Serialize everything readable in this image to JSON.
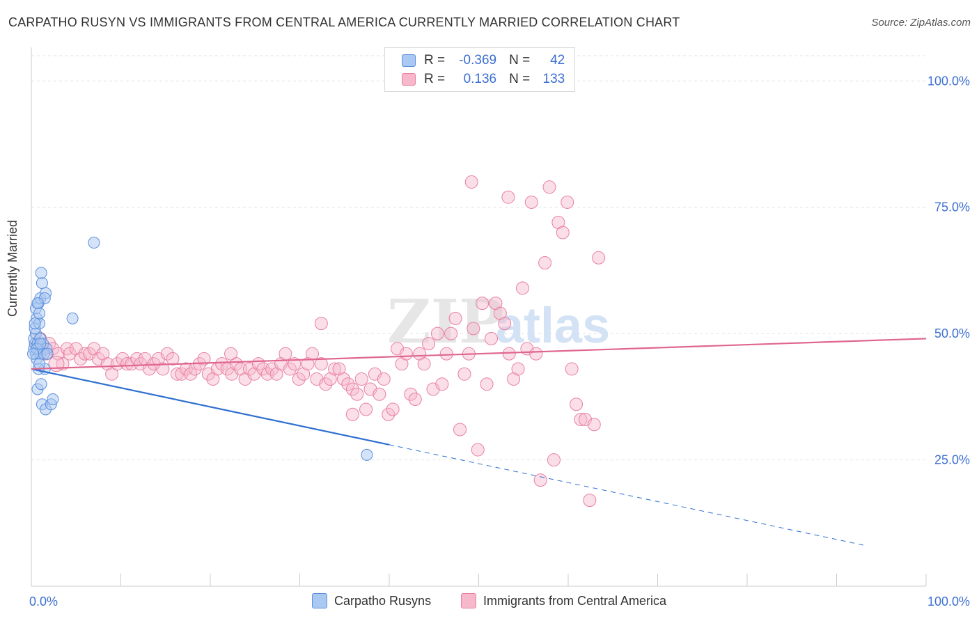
{
  "header": {
    "title": "CARPATHO RUSYN VS IMMIGRANTS FROM CENTRAL AMERICA CURRENTLY MARRIED CORRELATION CHART",
    "source": "Source: ZipAtlas.com"
  },
  "watermark": {
    "part1": "ZIP",
    "part2": "atlas"
  },
  "legend_top": {
    "rows": [
      {
        "r_label": "R =",
        "r_value": "-0.369",
        "n_label": "N =",
        "n_value": "42"
      },
      {
        "r_label": "R =",
        "r_value": "0.136",
        "n_label": "N =",
        "n_value": "133"
      }
    ]
  },
  "legend_bottom": {
    "s1": "Carpatho Rusyns",
    "s2": "Immigrants from Central America"
  },
  "colors": {
    "blue_fill": "#a9c8f2",
    "blue_stroke": "#5b8fdc",
    "blue_line": "#2e6fd0",
    "pink_fill": "#f7b8cc",
    "pink_stroke": "#e87fa0",
    "pink_line": "#e0668f",
    "tick_text": "#3d6fd1",
    "grid": "#e2e2e2"
  },
  "chart_data": {
    "type": "scatter",
    "title": "CARPATHO RUSYN VS IMMIGRANTS FROM CENTRAL AMERICA CURRENTLY MARRIED CORRELATION CHART",
    "xlabel": "",
    "ylabel": "Currently Married",
    "xlim": [
      0,
      100
    ],
    "ylim": [
      0,
      105
    ],
    "x_tick_labels": [
      "0.0%",
      "100.0%"
    ],
    "y_ticks": [
      {
        "value": 25,
        "label": "25.0%"
      },
      {
        "value": 50,
        "label": "50.0%"
      },
      {
        "value": 75,
        "label": "75.0%"
      },
      {
        "value": 100,
        "label": "100.0%"
      }
    ],
    "grid": true,
    "legend": "top-center",
    "series": [
      {
        "name": "Carpatho Rusyns",
        "r": -0.369,
        "n": 42,
        "trend": {
          "x0": 0,
          "y0": 43,
          "x1": 40,
          "y1": 28,
          "dash_to_x": 93
        },
        "points": [
          [
            0.3,
            47
          ],
          [
            0.5,
            46
          ],
          [
            0.4,
            48
          ],
          [
            0.6,
            45
          ],
          [
            0.8,
            47
          ],
          [
            1.0,
            46
          ],
          [
            0.3,
            49
          ],
          [
            0.5,
            50
          ],
          [
            0.7,
            48
          ],
          [
            0.4,
            51
          ],
          [
            0.6,
            53
          ],
          [
            0.9,
            52
          ],
          [
            0.5,
            55
          ],
          [
            0.8,
            56
          ],
          [
            1.0,
            57
          ],
          [
            1.2,
            60
          ],
          [
            1.1,
            62
          ],
          [
            1.6,
            58
          ],
          [
            1.5,
            57
          ],
          [
            0.7,
            56
          ],
          [
            0.9,
            54
          ],
          [
            0.4,
            52
          ],
          [
            1.0,
            49
          ],
          [
            1.3,
            48
          ],
          [
            1.7,
            47
          ],
          [
            1.4,
            46
          ],
          [
            1.5,
            43
          ],
          [
            0.8,
            43
          ],
          [
            0.9,
            44
          ],
          [
            0.7,
            39
          ],
          [
            1.1,
            40
          ],
          [
            1.2,
            36
          ],
          [
            1.6,
            35
          ],
          [
            2.2,
            36
          ],
          [
            2.4,
            37
          ],
          [
            7.0,
            68
          ],
          [
            4.6,
            53
          ],
          [
            0.6,
            47
          ],
          [
            1.8,
            46
          ],
          [
            0.2,
            46
          ],
          [
            37.5,
            26
          ],
          [
            1.0,
            48
          ]
        ]
      },
      {
        "name": "Immigrants from Central America",
        "r": 0.136,
        "n": 133,
        "trend": {
          "x0": 0,
          "y0": 43,
          "x1": 100,
          "y1": 49
        },
        "points": [
          [
            0.5,
            48
          ],
          [
            1.0,
            49
          ],
          [
            1.3,
            47
          ],
          [
            1.6,
            46
          ],
          [
            2.0,
            48
          ],
          [
            2.4,
            47
          ],
          [
            3.0,
            46
          ],
          [
            3.5,
            44
          ],
          [
            4.0,
            47
          ],
          [
            4.3,
            46
          ],
          [
            5.0,
            47
          ],
          [
            5.5,
            45
          ],
          [
            6.0,
            46
          ],
          [
            6.5,
            46
          ],
          [
            7.0,
            47
          ],
          [
            7.5,
            45
          ],
          [
            8.0,
            46
          ],
          [
            8.5,
            44
          ],
          [
            9.0,
            42
          ],
          [
            9.6,
            44
          ],
          [
            10.2,
            45
          ],
          [
            10.7,
            44
          ],
          [
            11.2,
            44
          ],
          [
            11.8,
            45
          ],
          [
            12.2,
            44
          ],
          [
            12.7,
            45
          ],
          [
            13.2,
            43
          ],
          [
            13.7,
            44
          ],
          [
            14.2,
            45
          ],
          [
            14.7,
            43
          ],
          [
            15.2,
            46
          ],
          [
            15.8,
            45
          ],
          [
            16.3,
            42
          ],
          [
            16.8,
            42
          ],
          [
            17.3,
            43
          ],
          [
            17.8,
            42
          ],
          [
            18.3,
            43
          ],
          [
            18.8,
            44
          ],
          [
            19.3,
            45
          ],
          [
            19.8,
            42
          ],
          [
            20.3,
            41
          ],
          [
            20.8,
            43
          ],
          [
            21.3,
            44
          ],
          [
            21.9,
            43
          ],
          [
            22.4,
            42
          ],
          [
            22.9,
            44
          ],
          [
            23.4,
            43
          ],
          [
            23.9,
            41
          ],
          [
            24.4,
            43
          ],
          [
            24.9,
            42
          ],
          [
            25.4,
            44
          ],
          [
            25.9,
            43
          ],
          [
            26.4,
            42
          ],
          [
            26.9,
            43
          ],
          [
            27.4,
            42
          ],
          [
            27.9,
            44
          ],
          [
            28.4,
            46
          ],
          [
            28.9,
            43
          ],
          [
            29.4,
            44
          ],
          [
            29.9,
            41
          ],
          [
            30.4,
            42
          ],
          [
            30.9,
            44
          ],
          [
            31.4,
            46
          ],
          [
            31.9,
            41
          ],
          [
            32.4,
            44
          ],
          [
            32.9,
            40
          ],
          [
            33.4,
            41
          ],
          [
            33.9,
            43
          ],
          [
            34.4,
            43
          ],
          [
            34.9,
            41
          ],
          [
            35.4,
            40
          ],
          [
            35.9,
            39
          ],
          [
            36.4,
            38
          ],
          [
            36.9,
            41
          ],
          [
            37.4,
            35
          ],
          [
            37.9,
            39
          ],
          [
            38.4,
            42
          ],
          [
            38.9,
            38
          ],
          [
            39.4,
            41
          ],
          [
            39.9,
            34
          ],
          [
            40.4,
            35
          ],
          [
            40.9,
            47
          ],
          [
            41.4,
            44
          ],
          [
            41.9,
            46
          ],
          [
            42.4,
            38
          ],
          [
            42.9,
            37
          ],
          [
            43.4,
            46
          ],
          [
            43.9,
            44
          ],
          [
            44.4,
            48
          ],
          [
            44.9,
            39
          ],
          [
            45.4,
            50
          ],
          [
            45.9,
            40
          ],
          [
            46.4,
            46
          ],
          [
            46.9,
            50
          ],
          [
            47.4,
            53
          ],
          [
            47.9,
            31
          ],
          [
            48.4,
            42
          ],
          [
            48.9,
            46
          ],
          [
            49.4,
            51
          ],
          [
            49.9,
            27
          ],
          [
            50.4,
            56
          ],
          [
            50.9,
            40
          ],
          [
            51.4,
            49
          ],
          [
            51.9,
            56
          ],
          [
            52.4,
            54
          ],
          [
            52.9,
            52
          ],
          [
            53.4,
            46
          ],
          [
            53.9,
            41
          ],
          [
            54.4,
            43
          ],
          [
            54.9,
            59
          ],
          [
            55.4,
            47
          ],
          [
            55.9,
            76
          ],
          [
            56.4,
            46
          ],
          [
            56.9,
            21
          ],
          [
            57.4,
            64
          ],
          [
            57.9,
            79
          ],
          [
            58.4,
            25
          ],
          [
            58.9,
            72
          ],
          [
            59.4,
            70
          ],
          [
            59.9,
            76
          ],
          [
            60.4,
            43
          ],
          [
            60.9,
            36
          ],
          [
            61.4,
            33
          ],
          [
            61.9,
            33
          ],
          [
            62.4,
            17
          ],
          [
            62.9,
            32
          ],
          [
            63.4,
            65
          ],
          [
            22.3,
            46
          ],
          [
            32.4,
            52
          ],
          [
            49.2,
            80
          ],
          [
            53.3,
            77
          ],
          [
            35.9,
            34
          ],
          [
            2.8,
            44
          ]
        ]
      }
    ]
  }
}
